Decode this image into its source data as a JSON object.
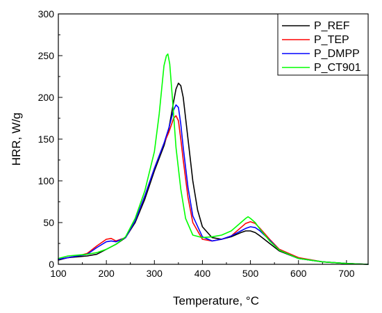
{
  "chart_data": {
    "type": "line",
    "xlabel": "Temperature, ",
    "xlabel_unit": "°C",
    "ylabel": "HRR, W/g",
    "xlim": [
      100,
      745
    ],
    "ylim": [
      0,
      300
    ],
    "xticks": [
      100,
      200,
      300,
      400,
      500,
      600,
      700
    ],
    "yticks": [
      0,
      50,
      100,
      150,
      200,
      250,
      300
    ],
    "grid": false,
    "legend_position": "top-right",
    "series": [
      {
        "name": "P_REF",
        "color": "#000000",
        "x": [
          100,
          120,
          140,
          160,
          180,
          200,
          220,
          240,
          260,
          280,
          300,
          320,
          330,
          340,
          345,
          350,
          355,
          360,
          370,
          380,
          390,
          400,
          420,
          440,
          460,
          480,
          490,
          500,
          510,
          520,
          540,
          560,
          600,
          650,
          700,
          745
        ],
        "y": [
          5,
          8,
          9,
          10,
          12,
          18,
          24,
          32,
          50,
          78,
          112,
          142,
          162,
          195,
          210,
          217,
          214,
          200,
          150,
          100,
          65,
          45,
          32,
          30,
          33,
          38,
          40,
          40,
          38,
          34,
          25,
          16,
          7,
          3,
          1,
          0
        ]
      },
      {
        "name": "P_TEP",
        "color": "#ff0000",
        "x": [
          100,
          120,
          140,
          160,
          180,
          200,
          210,
          220,
          240,
          260,
          280,
          300,
          320,
          330,
          340,
          345,
          350,
          355,
          360,
          370,
          380,
          400,
          420,
          440,
          460,
          480,
          490,
          500,
          510,
          520,
          540,
          560,
          600,
          650,
          700,
          745
        ],
        "y": [
          6,
          8,
          10,
          13,
          22,
          30,
          31,
          28,
          32,
          52,
          82,
          115,
          145,
          158,
          175,
          178,
          172,
          150,
          125,
          80,
          50,
          30,
          28,
          30,
          34,
          44,
          49,
          51,
          49,
          43,
          30,
          18,
          8,
          3,
          1,
          0
        ]
      },
      {
        "name": "P_DMPP",
        "color": "#0000ff",
        "x": [
          100,
          120,
          140,
          160,
          180,
          200,
          210,
          220,
          240,
          260,
          280,
          300,
          320,
          330,
          340,
          345,
          350,
          355,
          360,
          370,
          380,
          400,
          420,
          440,
          460,
          480,
          490,
          500,
          510,
          520,
          540,
          560,
          600,
          650,
          700,
          745
        ],
        "y": [
          6,
          8,
          10,
          12,
          20,
          27,
          28,
          27,
          32,
          52,
          82,
          115,
          145,
          163,
          185,
          191,
          188,
          168,
          140,
          92,
          58,
          33,
          28,
          30,
          34,
          40,
          43,
          45,
          44,
          40,
          29,
          17,
          7,
          3,
          1,
          0
        ]
      },
      {
        "name": "P_CT901",
        "color": "#00ff00",
        "x": [
          100,
          120,
          140,
          160,
          180,
          200,
          220,
          240,
          260,
          280,
          300,
          310,
          320,
          325,
          328,
          332,
          338,
          345,
          355,
          365,
          380,
          400,
          420,
          440,
          460,
          480,
          490,
          495,
          500,
          510,
          520,
          540,
          560,
          600,
          650,
          700,
          745
        ],
        "y": [
          7,
          10,
          11,
          12,
          14,
          18,
          24,
          33,
          55,
          88,
          135,
          180,
          238,
          250,
          252,
          240,
          195,
          140,
          90,
          55,
          35,
          32,
          33,
          35,
          40,
          50,
          55,
          57,
          55,
          50,
          42,
          28,
          17,
          7,
          3,
          1,
          0
        ]
      }
    ]
  }
}
